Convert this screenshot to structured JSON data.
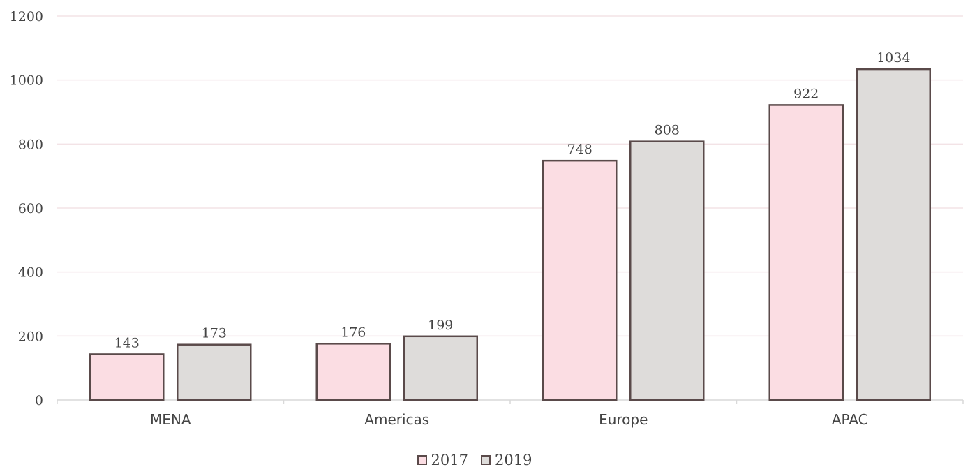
{
  "chart_data": {
    "type": "bar",
    "categories": [
      "MENA",
      "Americas",
      "Europe",
      "APAC"
    ],
    "series": [
      {
        "name": "2017",
        "values": [
          143,
          176,
          748,
          922
        ],
        "color": "#fbdde3"
      },
      {
        "name": "2019",
        "values": [
          173,
          199,
          808,
          1034
        ],
        "color": "#dedcda"
      }
    ],
    "ylim": [
      0,
      1200
    ],
    "yticks": [
      0,
      200,
      400,
      600,
      800,
      1000,
      1200
    ],
    "grid": true,
    "legend_position": "bottom",
    "bar_border_color": "#5a4a4a",
    "grid_color": "#f3e3e6"
  }
}
